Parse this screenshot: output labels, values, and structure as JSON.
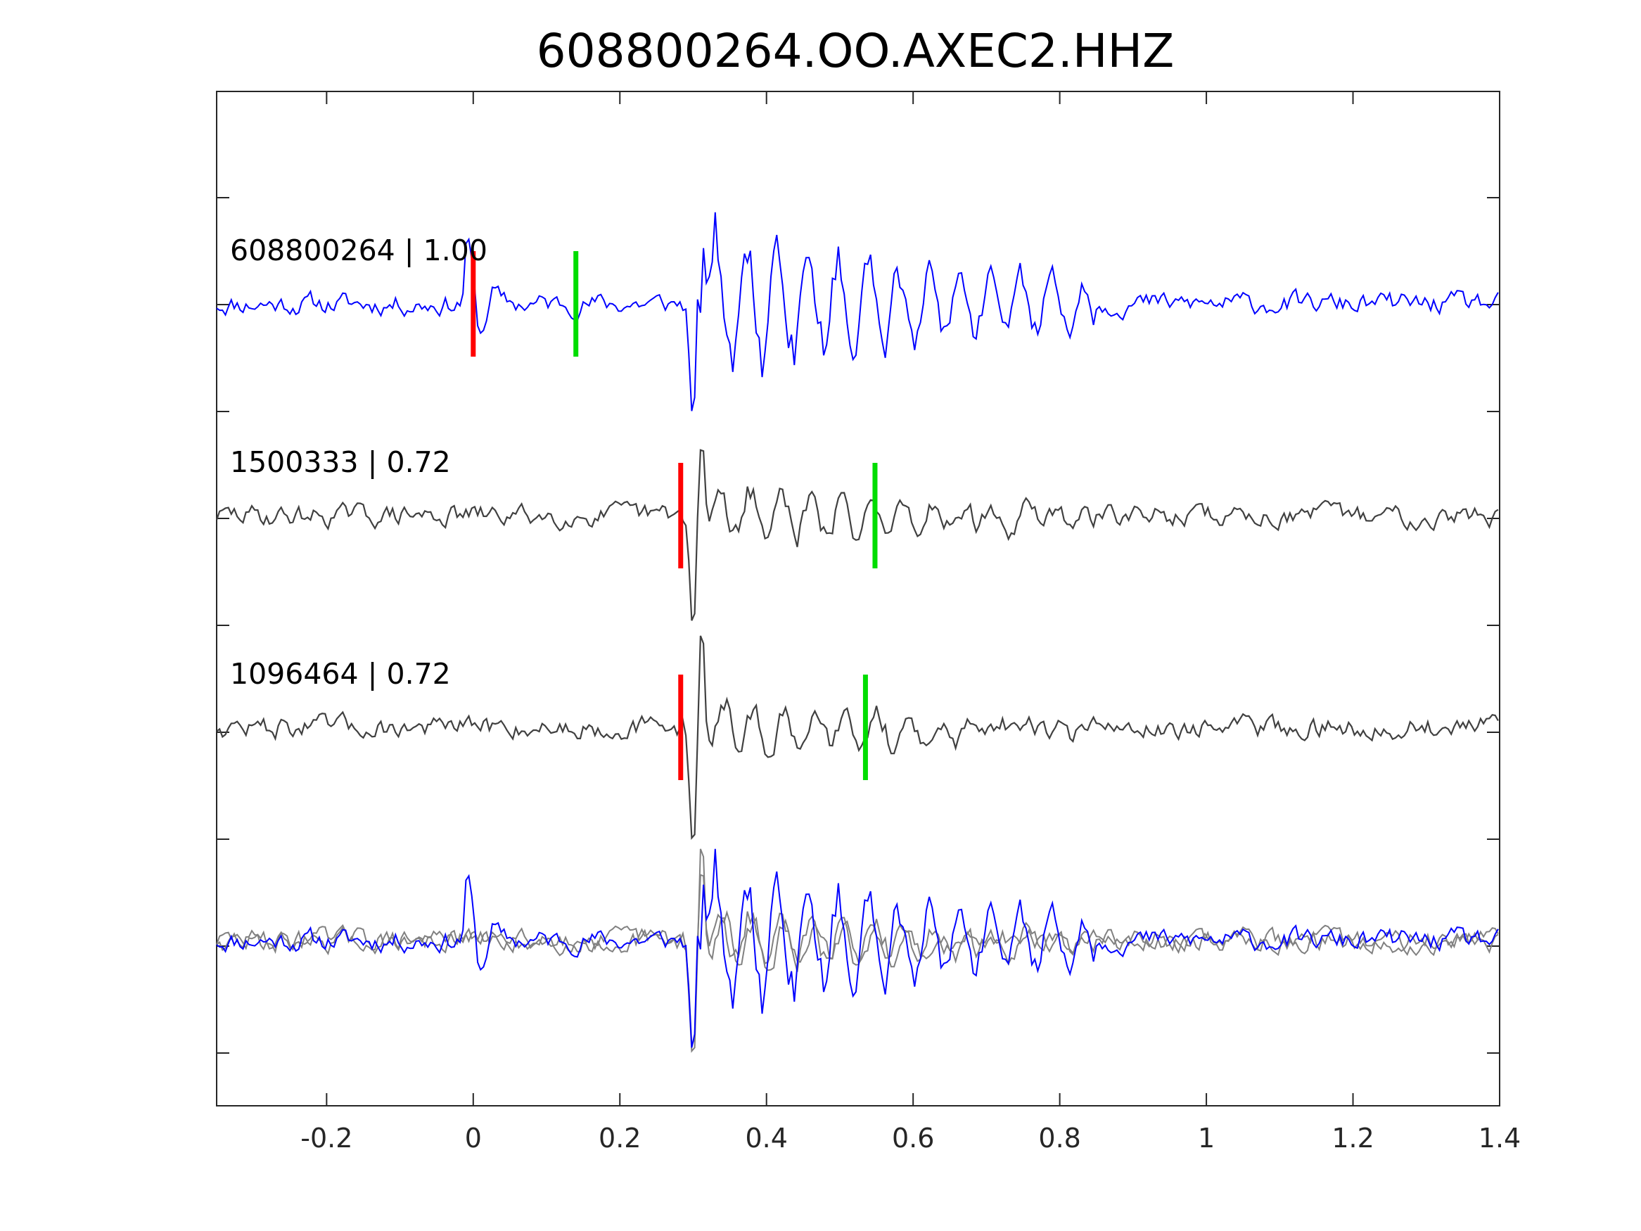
{
  "chart_data": {
    "type": "line",
    "title": "608800264.OO.AXEC2.HHZ",
    "xlabel": "",
    "ylabel": "",
    "xlim": [
      -0.35,
      1.4
    ],
    "x_ticks": [
      -0.2,
      0,
      0.2,
      0.4,
      0.6,
      0.8,
      1,
      1.2,
      1.4
    ],
    "x_tick_labels": [
      "-0.2",
      "0",
      "0.2",
      "0.4",
      "0.6",
      "0.8",
      "1",
      "1.2",
      "1.4"
    ],
    "y_tick_count": 9,
    "grid": false,
    "legend": "none",
    "colors": {
      "primary": "#0000ff",
      "secondary": "#404040",
      "overlay": "#808080",
      "p_pick": "#ff0000",
      "s_pick": "#00dd00"
    },
    "traces": [
      {
        "label": "608800264 | 1.00",
        "event": "608800264",
        "cc": "1.00",
        "color": "#0000ff",
        "p_pick": 0.0,
        "s_pick": 0.14,
        "wave_start": -0.01,
        "seed": 11
      },
      {
        "label": "1500333 | 0.72",
        "event": "1500333",
        "cc": "0.72",
        "color": "#404040",
        "p_pick": 0.283,
        "s_pick": 0.548,
        "wave_start": 0.274,
        "seed": 29
      },
      {
        "label": "1096464 | 0.72",
        "event": "1096464",
        "cc": "0.72",
        "color": "#404040",
        "p_pick": 0.283,
        "s_pick": 0.535,
        "wave_start": 0.274,
        "seed": 47
      }
    ],
    "stack": {
      "description_series": [
        "608800264",
        "1500333",
        "1096464"
      ]
    }
  }
}
